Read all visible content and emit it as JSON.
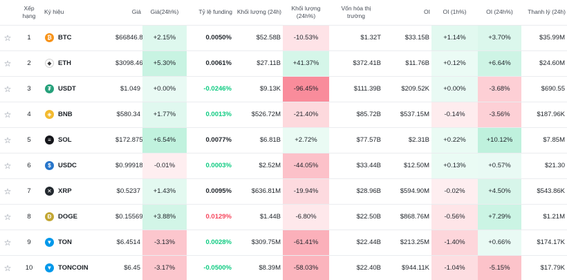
{
  "headers": {
    "rank": "Xếp hạng",
    "symbol": "Ký hiệu",
    "price": "Giá",
    "price_change": "Giá(24h%)",
    "funding": "Tỷ lệ funding",
    "volume": "Khối lượng (24h)",
    "volume_change": "Khối lượng (24h%)",
    "mcap_line1": "Vốn hóa thị",
    "mcap_line2": "trường",
    "oi": "OI",
    "oi_1h": "OI (1h%)",
    "oi_24h": "OI (24h%)",
    "liq": "Thanh lý (24h)"
  },
  "rows": [
    {
      "rank": "1",
      "symbol": "BTC",
      "icon": "btc-icon",
      "icon_color": "#f7931a",
      "glyph": "₿",
      "price": "$66846.8",
      "chg": "+2.15%",
      "chg_v": 2.15,
      "funding": "0.0050%",
      "funding_tone": "neutral",
      "vol": "$52.58B",
      "volchg": "-10.53%",
      "volchg_v": -10.53,
      "mcap": "$1.32T",
      "oi": "$33.15B",
      "oi1h": "+1.14%",
      "oi1h_v": 1.14,
      "oi24": "+3.70%",
      "oi24_v": 3.7,
      "liq": "$35.99M"
    },
    {
      "rank": "2",
      "symbol": "ETH",
      "icon": "eth-icon",
      "icon_color": "#ffffff",
      "glyph": "◆",
      "price": "$3098.46",
      "chg": "+5.30%",
      "chg_v": 5.3,
      "funding": "0.0061%",
      "funding_tone": "neutral",
      "vol": "$27.11B",
      "volchg": "+41.37%",
      "volchg_v": 41.37,
      "mcap": "$372.41B",
      "oi": "$11.76B",
      "oi1h": "+0.12%",
      "oi1h_v": 0.12,
      "oi24": "+6.64%",
      "oi24_v": 6.64,
      "liq": "$24.60M"
    },
    {
      "rank": "3",
      "symbol": "USDT",
      "icon": "usdt-icon",
      "icon_color": "#26a17b",
      "glyph": "₮",
      "price": "$1.049",
      "chg": "+0.00%",
      "chg_v": 0,
      "funding": "-0.0246%",
      "funding_tone": "pos",
      "vol": "$9.13K",
      "volchg": "-96.45%",
      "volchg_v": -96.45,
      "mcap": "$111.39B",
      "oi": "$209.52K",
      "oi1h": "+0.00%",
      "oi1h_v": 0,
      "oi24": "-3.68%",
      "oi24_v": -3.68,
      "liq": "$690.55"
    },
    {
      "rank": "4",
      "symbol": "BNB",
      "icon": "bnb-icon",
      "icon_color": "#f3ba2f",
      "glyph": "◈",
      "price": "$580.34",
      "chg": "+1.77%",
      "chg_v": 1.77,
      "funding": "0.0013%",
      "funding_tone": "pos",
      "vol": "$526.72M",
      "volchg": "-21.40%",
      "volchg_v": -21.4,
      "mcap": "$85.72B",
      "oi": "$537.15M",
      "oi1h": "-0.14%",
      "oi1h_v": -0.14,
      "oi24": "-3.56%",
      "oi24_v": -3.56,
      "liq": "$187.96K"
    },
    {
      "rank": "5",
      "symbol": "SOL",
      "icon": "sol-icon",
      "icon_color": "#14151a",
      "glyph": "≡",
      "price": "$172.875",
      "chg": "+6.54%",
      "chg_v": 6.54,
      "funding": "0.0077%",
      "funding_tone": "neutral",
      "vol": "$6.81B",
      "volchg": "+2.72%",
      "volchg_v": 2.72,
      "mcap": "$77.57B",
      "oi": "$2.31B",
      "oi1h": "+0.22%",
      "oi1h_v": 0.22,
      "oi24": "+10.12%",
      "oi24_v": 10.12,
      "liq": "$7.85M"
    },
    {
      "rank": "6",
      "symbol": "USDC",
      "icon": "usdc-icon",
      "icon_color": "#2775ca",
      "glyph": "$",
      "price": "$0.999185",
      "chg": "-0.01%",
      "chg_v": -0.01,
      "funding": "0.0003%",
      "funding_tone": "pos",
      "vol": "$2.52M",
      "volchg": "-44.05%",
      "volchg_v": -44.05,
      "mcap": "$33.44B",
      "oi": "$12.50M",
      "oi1h": "+0.13%",
      "oi1h_v": 0.13,
      "oi24": "+0.57%",
      "oi24_v": 0.57,
      "liq": "$21.30"
    },
    {
      "rank": "7",
      "symbol": "XRP",
      "icon": "xrp-icon",
      "icon_color": "#23292f",
      "glyph": "✕",
      "price": "$0.5237",
      "chg": "+1.43%",
      "chg_v": 1.43,
      "funding": "0.0095%",
      "funding_tone": "neutral",
      "vol": "$636.81M",
      "volchg": "-19.94%",
      "volchg_v": -19.94,
      "mcap": "$28.96B",
      "oi": "$594.90M",
      "oi1h": "-0.02%",
      "oi1h_v": -0.02,
      "oi24": "+4.50%",
      "oi24_v": 4.5,
      "liq": "$543.86K"
    },
    {
      "rank": "8",
      "symbol": "DOGE",
      "icon": "doge-icon",
      "icon_color": "#c2a633",
      "glyph": "Ð",
      "price": "$0.15569",
      "chg": "+3.88%",
      "chg_v": 3.88,
      "funding": "0.0129%",
      "funding_tone": "neg",
      "vol": "$1.44B",
      "volchg": "-6.80%",
      "volchg_v": -6.8,
      "mcap": "$22.50B",
      "oi": "$868.76M",
      "oi1h": "-0.56%",
      "oi1h_v": -0.56,
      "oi24": "+7.29%",
      "oi24_v": 7.29,
      "liq": "$1.21M"
    },
    {
      "rank": "9",
      "symbol": "TON",
      "icon": "ton-icon",
      "icon_color": "#0098ea",
      "glyph": "▼",
      "price": "$6.4514",
      "chg": "-3.13%",
      "chg_v": -3.13,
      "funding": "0.0028%",
      "funding_tone": "pos",
      "vol": "$309.75M",
      "volchg": "-61.41%",
      "volchg_v": -61.41,
      "mcap": "$22.44B",
      "oi": "$213.25M",
      "oi1h": "-1.40%",
      "oi1h_v": -1.4,
      "oi24": "+0.66%",
      "oi24_v": 0.66,
      "liq": "$174.17K"
    },
    {
      "rank": "10",
      "symbol": "TONCOIN",
      "icon": "toncoin-icon",
      "icon_color": "#0098ea",
      "glyph": "▼",
      "price": "$6.45",
      "chg": "-3.17%",
      "chg_v": -3.17,
      "funding": "-0.0500%",
      "funding_tone": "pos",
      "vol": "$8.39M",
      "volchg": "-58.03%",
      "volchg_v": -58.03,
      "mcap": "$22.40B",
      "oi": "$944.11K",
      "oi1h": "-1.04%",
      "oi1h_v": -1.04,
      "oi24": "-5.15%",
      "oi24_v": -5.15,
      "liq": "$17.79K"
    }
  ]
}
